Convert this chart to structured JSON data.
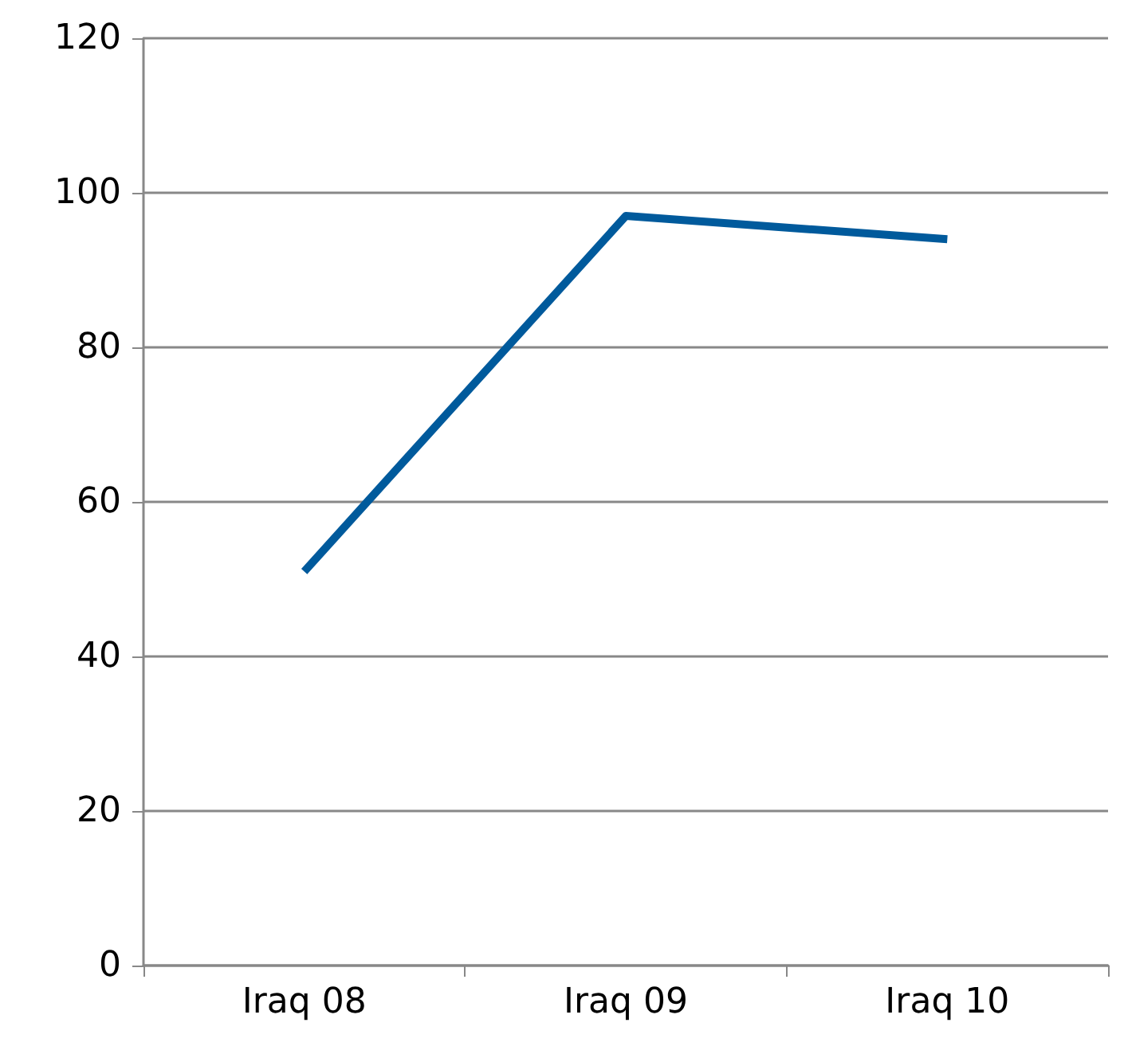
{
  "chart_data": {
    "type": "line",
    "categories": [
      "Iraq 08",
      "Iraq 09",
      "Iraq 10"
    ],
    "series": [
      {
        "color": "#005a9c",
        "values": [
          51,
          97,
          94
        ]
      }
    ],
    "ylim": [
      0,
      120
    ],
    "yticks": [
      0,
      20,
      40,
      60,
      80,
      100,
      120
    ],
    "grid": "y",
    "marker": "none",
    "line_style": "solid"
  }
}
